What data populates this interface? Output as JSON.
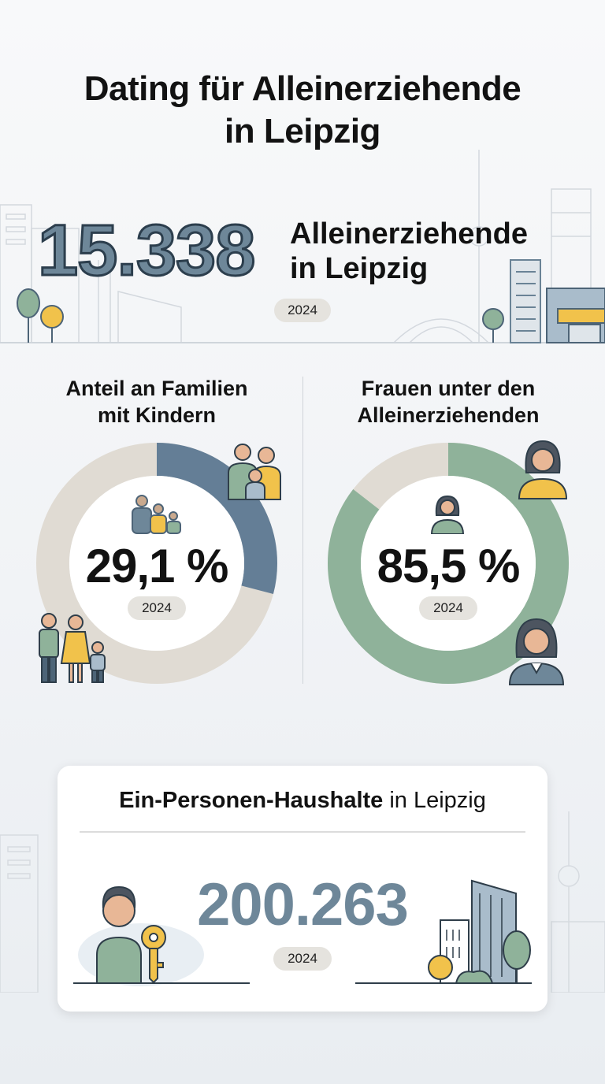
{
  "header": {
    "title_line1": "Dating für Alleinerziehende",
    "title_line2": "in Leipzig"
  },
  "hero": {
    "number": "15.338",
    "label_line1": "Alleinerziehende",
    "label_line2": "in Leipzig",
    "year": "2024"
  },
  "stats": [
    {
      "title_line1": "Anteil an Familien",
      "title_line2": "mit Kindern",
      "value_text": "29,1 %",
      "value": 29.1,
      "year": "2024",
      "color": "#647e96",
      "track_color": "#e0dbd3"
    },
    {
      "title_line1": "Frauen unter den",
      "title_line2": "Alleinerziehenden",
      "value_text": "85,5 %",
      "value": 85.5,
      "year": "2024",
      "color": "#8fb29a",
      "track_color": "#e0dbd3"
    }
  ],
  "households": {
    "title_bold": "Ein-Personen-Haushalte",
    "title_rest": " in Leipzig",
    "number": "200.263",
    "year": "2024"
  },
  "icons": {
    "family_a": "family-icon",
    "family_b": "family-icon",
    "woman": "woman-icon",
    "person": "person-icon",
    "key": "key-icon",
    "buildings": "buildings-icon",
    "skyline": "skyline-icon",
    "trees": "tree-icon"
  },
  "colors": {
    "accent_blue": "#647e96",
    "accent_green": "#8fb29a",
    "accent_yellow": "#f1c24b",
    "pill_bg": "#e5e3de"
  }
}
